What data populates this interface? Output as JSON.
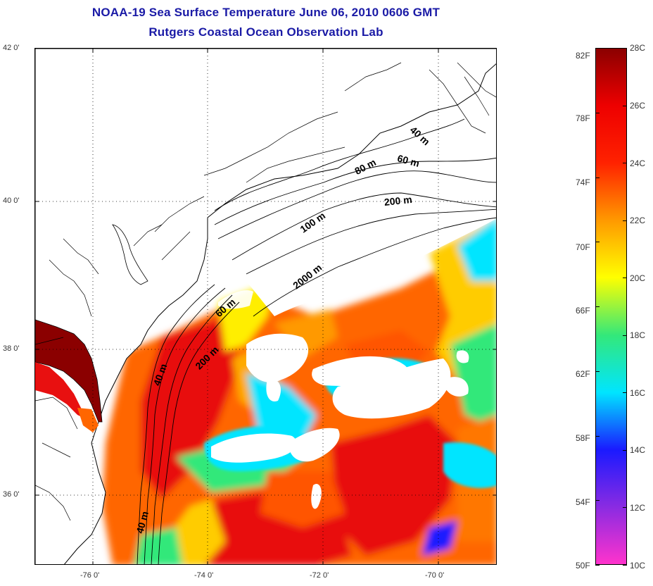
{
  "title": {
    "line1": "NOAA-19 Sea Surface Temperature June 06, 2010 0606 GMT",
    "line2": "Rutgers Coastal Ocean Observation Lab"
  },
  "colors": {
    "title": "#1a1aa6",
    "land": "#ffffff",
    "coastline": "#000000"
  },
  "axes": {
    "latitude_labels": [
      "42 0'",
      "40 0'",
      "38 0'",
      "36 0'"
    ],
    "longitude_labels": [
      "-76 0'",
      "-74 0'",
      "-72 0'",
      "-70 0'"
    ]
  },
  "contours": {
    "labels": [
      "40 m",
      "60 m",
      "80 m",
      "200 m",
      "100 m",
      "2000 m",
      "60 m",
      "200 m",
      "40 m",
      "40 m"
    ]
  },
  "colorbar": {
    "fahrenheit_labels": [
      "82F",
      "78F",
      "74F",
      "70F",
      "66F",
      "62F",
      "58F",
      "54F",
      "50F"
    ],
    "celsius_labels": [
      "28C",
      "26C",
      "24C",
      "22C",
      "20C",
      "18C",
      "16C",
      "14C",
      "12C",
      "10C"
    ],
    "range_c": [
      10,
      28
    ],
    "stops": [
      "#ff33cc",
      "#8a2be2",
      "#1a1aff",
      "#00e5ff",
      "#33e87a",
      "#ffff00",
      "#ff9900",
      "#ff2200",
      "#ee0000",
      "#8b0000"
    ]
  }
}
